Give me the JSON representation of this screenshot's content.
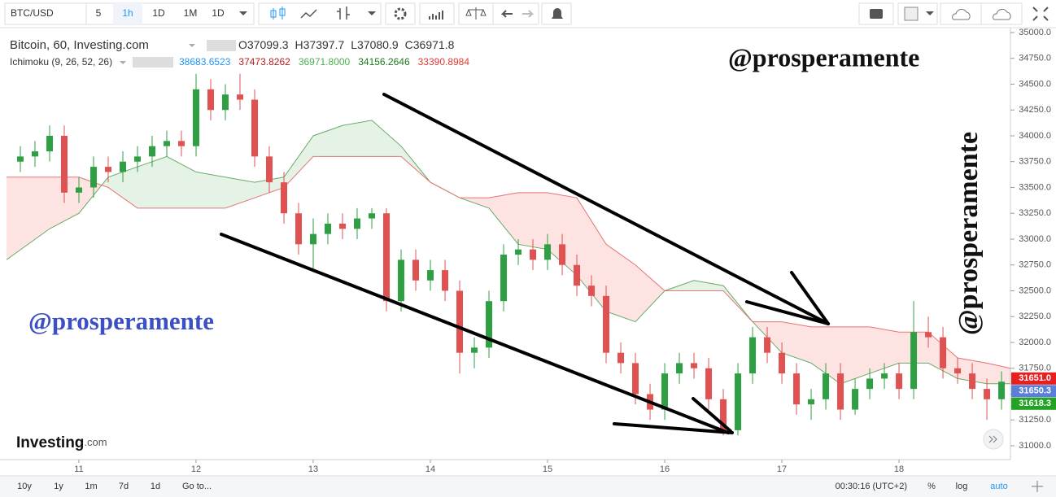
{
  "toolbar": {
    "symbol": "BTC/USD",
    "intervals": [
      "5",
      "1h",
      "1D",
      "1M",
      "1D"
    ]
  },
  "legend": {
    "title": "Bitcoin, 60, Investing.com",
    "ohlc": [
      {
        "letter": "O",
        "value": 37099.3
      },
      {
        "letter": "H",
        "value": 37397.7
      },
      {
        "letter": "L",
        "value": 37080.9
      },
      {
        "letter": "C",
        "value": 36971.8
      }
    ],
    "indicator": "Ichimoku (9, 26, 52, 26)",
    "indicator_values": [
      {
        "value": 38683.6523,
        "label": "38683.6523",
        "color": "#2196f3"
      },
      {
        "value": 37473.8262,
        "label": "37473.8262",
        "color": "#b71c1c"
      },
      {
        "value": 36971.8,
        "label": "36971.8000",
        "color": "#4caf50"
      },
      {
        "value": 34156.2646,
        "label": "34156.2646",
        "color": "#1b7a1b"
      },
      {
        "value": 33390.8984,
        "label": "33390.8984",
        "color": "#e53935"
      }
    ]
  },
  "watermarks": [
    "@prosperamente",
    "@prosperamente",
    "@prosperamente"
  ],
  "logo": {
    "brand": "Investing",
    "suffix": ".com"
  },
  "chart_data": {
    "type": "candlestick",
    "x": [
      10.5,
      10.625,
      10.75,
      10.875,
      11,
      11.125,
      11.25,
      11.375,
      11.5,
      11.625,
      11.75,
      11.875,
      12,
      12.125,
      12.25,
      12.375,
      12.5,
      12.625,
      12.75,
      12.875,
      13,
      13.125,
      13.25,
      13.375,
      13.5,
      13.625,
      13.75,
      13.875,
      14,
      14.125,
      14.25,
      14.375,
      14.5,
      14.625,
      14.75,
      14.875,
      15,
      15.125,
      15.25,
      15.375,
      15.5,
      15.625,
      15.75,
      15.875,
      16,
      16.125,
      16.25,
      16.375,
      16.5,
      16.625,
      16.75,
      16.875,
      17,
      17.125,
      17.25,
      17.375,
      17.5,
      17.625,
      17.75,
      17.875,
      18,
      18.125,
      18.25,
      18.375,
      18.5,
      18.625,
      18.75,
      18.875
    ],
    "open": [
      33750,
      33800,
      33850,
      34000,
      33450,
      33500,
      33700,
      33650,
      33750,
      33800,
      33900,
      33950,
      33900,
      34450,
      34250,
      34400,
      34350,
      33800,
      33550,
      33250,
      32950,
      33050,
      33150,
      33100,
      33200,
      33250,
      32400,
      32800,
      32600,
      32700,
      32500,
      31900,
      31950,
      32400,
      32850,
      32900,
      32800,
      32950,
      32750,
      32550,
      32450,
      31900,
      31800,
      31500,
      31350,
      31700,
      31800,
      31750,
      31450,
      31150,
      31700,
      32050,
      31900,
      31700,
      31400,
      31450,
      31700,
      31350,
      31550,
      31650,
      31700,
      31550,
      32100,
      32050,
      31750,
      31700,
      31550,
      31450
    ],
    "high": [
      33900,
      33950,
      34100,
      34100,
      33600,
      33800,
      33800,
      33850,
      33900,
      34000,
      34050,
      34050,
      34600,
      34550,
      34500,
      34600,
      34450,
      33900,
      33650,
      33350,
      33200,
      33250,
      33250,
      33300,
      33300,
      33300,
      32900,
      32900,
      32800,
      32800,
      32600,
      32050,
      32500,
      32950,
      33000,
      33000,
      33050,
      33050,
      32850,
      32650,
      32550,
      32000,
      31900,
      31600,
      31800,
      31900,
      31900,
      31850,
      31550,
      31800,
      32150,
      32150,
      32000,
      31800,
      31550,
      31800,
      31800,
      31650,
      31750,
      31800,
      31800,
      32400,
      32250,
      32150,
      31850,
      31800,
      31650,
      31720
    ],
    "low": [
      33650,
      33700,
      33750,
      33350,
      33350,
      33400,
      33550,
      33550,
      33650,
      33700,
      33800,
      33800,
      33800,
      34150,
      34150,
      34250,
      33700,
      33450,
      33150,
      32850,
      32700,
      32950,
      33000,
      33000,
      33100,
      32300,
      32300,
      32500,
      32500,
      32400,
      31700,
      31750,
      31850,
      32300,
      32750,
      32700,
      32700,
      32650,
      32450,
      32350,
      31800,
      31700,
      31400,
      31250,
      31250,
      31600,
      31650,
      31350,
      31100,
      31100,
      31600,
      31800,
      31600,
      31300,
      31250,
      31350,
      31250,
      31300,
      31450,
      31550,
      31450,
      31450,
      31950,
      31650,
      31600,
      31450,
      31250,
      31350
    ],
    "close": [
      33800,
      33850,
      34000,
      33450,
      33500,
      33700,
      33650,
      33750,
      33800,
      33900,
      33950,
      33900,
      34450,
      34250,
      34400,
      34350,
      33800,
      33550,
      33250,
      32950,
      33050,
      33150,
      33100,
      33200,
      33250,
      32400,
      32800,
      32600,
      32700,
      32500,
      31900,
      31950,
      32400,
      32850,
      32900,
      32800,
      32950,
      32750,
      32550,
      32450,
      31900,
      31800,
      31500,
      31350,
      31700,
      31800,
      31750,
      31450,
      31150,
      31700,
      32050,
      31900,
      31700,
      31400,
      31450,
      31700,
      31350,
      31550,
      31650,
      31700,
      31550,
      32100,
      32050,
      31750,
      31700,
      31550,
      31450,
      31620
    ],
    "up_color": "#2ea043",
    "down_color": "#e05252",
    "cloud": {
      "x": [
        10.382,
        10.75,
        11,
        11.25,
        11.5,
        11.75,
        12,
        12.25,
        12.5,
        12.75,
        13,
        13.25,
        13.5,
        13.75,
        14,
        14.25,
        14.5,
        14.75,
        15,
        15.25,
        15.5,
        15.75,
        16,
        16.25,
        16.5,
        16.75,
        17,
        17.25,
        17.5,
        17.75,
        18,
        18.25,
        18.5,
        18.75,
        18.951
      ],
      "span_a": [
        32800,
        33100,
        33250,
        33600,
        33700,
        33800,
        33650,
        33600,
        33550,
        33600,
        34000,
        34100,
        34150,
        33900,
        33550,
        33400,
        33300,
        32950,
        32900,
        32650,
        32300,
        32200,
        32500,
        32600,
        32550,
        32200,
        31900,
        31800,
        31600,
        31700,
        31800,
        31800,
        31650,
        31600,
        31600
      ],
      "span_b": [
        33600,
        33600,
        33600,
        33500,
        33300,
        33300,
        33300,
        33300,
        33400,
        33500,
        33800,
        33800,
        33800,
        33800,
        33550,
        33400,
        33400,
        33450,
        33450,
        33400,
        32950,
        32750,
        32500,
        32500,
        32500,
        32200,
        32200,
        32150,
        32150,
        32150,
        32100,
        32100,
        31850,
        31800,
        31750
      ],
      "span_a_color": "#6aaa6a",
      "span_b_color": "#e57373",
      "up_fill": "rgba(76,175,80,0.15)",
      "down_fill": "rgba(244,67,54,0.15)"
    },
    "xlim": [
      10.382,
      18.951
    ],
    "xticks": [
      11,
      12,
      13,
      14,
      15,
      16,
      17,
      18
    ],
    "ylim": [
      30866,
      35047
    ],
    "yticks": [
      {
        "value": 31000,
        "label": "31000.0"
      },
      {
        "value": 31250,
        "label": "31250.0"
      },
      {
        "value": 31500,
        "label": "31500.0"
      },
      {
        "value": 31750,
        "label": "31750.0"
      },
      {
        "value": 32000,
        "label": "32000.0"
      },
      {
        "value": 32250,
        "label": "32250.0"
      },
      {
        "value": 32500,
        "label": "32500.0"
      },
      {
        "value": 32750,
        "label": "32750.0"
      },
      {
        "value": 33000,
        "label": "33000.0"
      },
      {
        "value": 33250,
        "label": "33250.0"
      },
      {
        "value": 33500,
        "label": "33500.0"
      },
      {
        "value": 33750,
        "label": "33750.0"
      },
      {
        "value": 34000,
        "label": "34000.0"
      },
      {
        "value": 34250,
        "label": "34250.0"
      },
      {
        "value": 34500,
        "label": "34500.0"
      },
      {
        "value": 34750,
        "label": "34750.0"
      },
      {
        "value": 35000,
        "label": "35000.0"
      }
    ],
    "price_badges": [
      {
        "value": 31651.0,
        "label": "31651.0",
        "color": "#e91e1e"
      },
      {
        "value": 31650.3,
        "label": "31650.3",
        "color": "#5b7fd6"
      },
      {
        "value": 31618.3,
        "label": "31618.3",
        "color": "#22a322"
      }
    ]
  },
  "bottom_bar": {
    "ranges": [
      "10y",
      "1y",
      "1m",
      "7d",
      "1d"
    ],
    "goto": "Go to...",
    "clock": "00:30:16 (UTC+2)",
    "options": [
      "%",
      "log",
      "auto"
    ]
  }
}
